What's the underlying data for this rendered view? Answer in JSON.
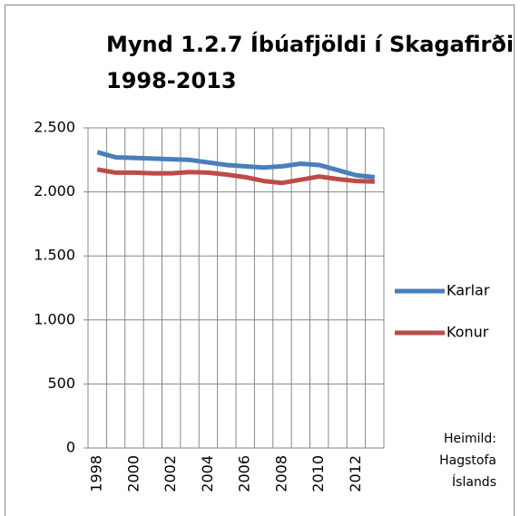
{
  "chart_data": {
    "type": "line",
    "title": [
      "Mynd 1.2.7 Íbúafjöldi í Skagafirði",
      "1998-2013"
    ],
    "categories": [
      "1998",
      null,
      "2000",
      null,
      "2002",
      null,
      "2004",
      null,
      "2006",
      null,
      "2008",
      null,
      "2010",
      null,
      "2012",
      null
    ],
    "series": [
      {
        "name": "Karlar",
        "color": "#4a7ebb",
        "values": [
          2310,
          2270,
          2265,
          2260,
          2255,
          2250,
          2230,
          2210,
          2200,
          2190,
          2200,
          2220,
          2210,
          2170,
          2130,
          2115
        ]
      },
      {
        "name": "Konur",
        "color": "#be4b48",
        "values": [
          2175,
          2150,
          2150,
          2145,
          2145,
          2155,
          2150,
          2135,
          2115,
          2085,
          2070,
          2095,
          2120,
          2100,
          2085,
          2080
        ]
      }
    ],
    "ylim": [
      0,
      2500
    ],
    "yticks": [
      0,
      500,
      {
        "value": 1000,
        "label": "1.000"
      },
      {
        "value": 1500,
        "label": "1.500"
      },
      {
        "value": 2000,
        "label": "2.000"
      },
      {
        "value": 2500,
        "label": "2.500"
      }
    ],
    "grid": true,
    "legend": "right",
    "annotation": [
      "Heimild:",
      "Hagstofa",
      "Íslands"
    ]
  }
}
